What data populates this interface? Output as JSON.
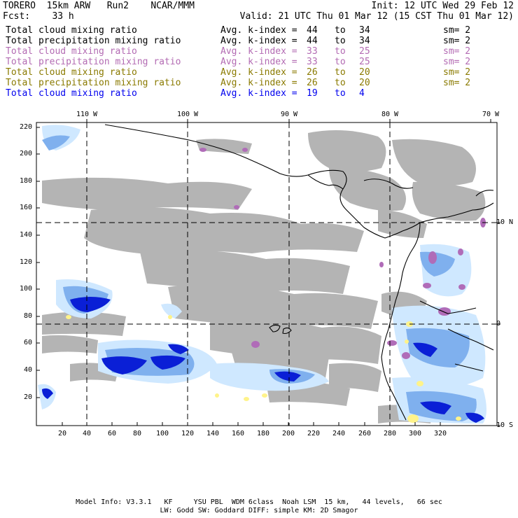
{
  "header": {
    "line1_left": "TORERO  15km ARW   Run2    NCAR/MMM",
    "line1_right": "Init: 12 UTC Wed 29 Feb 12",
    "line2_left": "Fcst:    33 h",
    "line2_right": "Valid: 21 UTC Thu 01 Mar 12 (15 CST Thu 01 Mar 12)"
  },
  "legend": [
    {
      "field": "Total cloud mixing ratio",
      "kidx": "Avg. k-index =",
      "from": "44",
      "to": "to",
      "end": "34",
      "sm": "sm= 2",
      "color": "#000000"
    },
    {
      "field": "Total precipitation mixing ratio",
      "kidx": "Avg. k-index =",
      "from": "44",
      "to": "to",
      "end": "34",
      "sm": "sm= 2",
      "color": "#000000"
    },
    {
      "field": "Total cloud mixing ratio",
      "kidx": "Avg. k-index =",
      "from": "33",
      "to": "to",
      "end": "25",
      "sm": "sm= 2",
      "color": "#b36bb3"
    },
    {
      "field": "Total precipitation mixing ratio",
      "kidx": "Avg. k-index =",
      "from": "33",
      "to": "to",
      "end": "25",
      "sm": "sm= 2",
      "color": "#b36bb3"
    },
    {
      "field": "Total cloud mixing ratio",
      "kidx": "Avg. k-index =",
      "from": "26",
      "to": "to",
      "end": "20",
      "sm": "sm= 2",
      "color": "#8a7a00"
    },
    {
      "field": "Total precipitation mixing ratio",
      "kidx": "Avg. k-index =",
      "from": "26",
      "to": "to",
      "end": "20",
      "sm": "sm= 2",
      "color": "#8a7a00"
    },
    {
      "field": "Total cloud mixing ratio",
      "kidx": "Avg. k-index =",
      "from": "19",
      "to": "to",
      "end": "4",
      "sm": "",
      "color": "#0000ee"
    }
  ],
  "map": {
    "top_lon_labels": [
      "110 W",
      "100 W",
      "90 W",
      "80 W",
      "70 W"
    ],
    "right_lat_labels": [
      "10 N",
      "0",
      "10 S"
    ],
    "left_ticks": [
      "220",
      "200",
      "180",
      "160",
      "140",
      "120",
      "100",
      "80",
      "60",
      "40",
      "20"
    ],
    "bottom_ticks": [
      "20",
      "40",
      "60",
      "80",
      "100",
      "120",
      "140",
      "160",
      "180",
      "200",
      "220",
      "240",
      "260",
      "280",
      "300",
      "320"
    ],
    "colors": {
      "cloud_gray": "#b4b4b4",
      "purple": "#b06cb8",
      "blue_light": "#cfe8ff",
      "blue_mid": "#7fb0ee",
      "blue_dark": "#0a1fd6",
      "yellow": "#fff38a"
    }
  },
  "footer": {
    "line1": "Model Info: V3.3.1   KF     YSU PBL  WDM 6class  Noah LSM  15 km,   44 levels,   66 sec",
    "line2": "LW: Godd SW: Goddard DIFF: simple KM: 2D Smagor"
  }
}
